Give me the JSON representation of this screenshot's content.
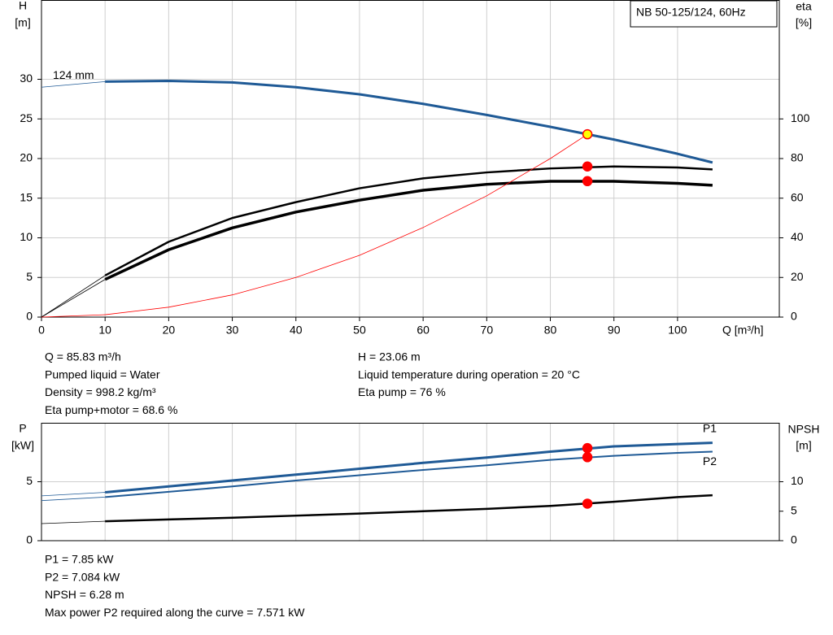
{
  "chart_data": [
    {
      "type": "line",
      "title": "NB 50-125/124, 60Hz",
      "ylabel": "H",
      "yunit": "[m]",
      "y2label": "eta",
      "y2unit": "[%]",
      "xlabel": "Q [m³/h]",
      "xlim": [
        0,
        116
      ],
      "xticks": [
        0,
        10,
        20,
        30,
        40,
        50,
        60,
        70,
        80,
        90,
        100
      ],
      "ylim": [
        0,
        40
      ],
      "yticks": [
        0,
        5,
        10,
        15,
        20,
        25,
        30
      ],
      "y2lim": [
        0,
        160
      ],
      "y2ticks": [
        0,
        20,
        40,
        60,
        80,
        100
      ],
      "grid": true,
      "thick_from": 10,
      "thin_width": 0.8,
      "point_x": 85.83,
      "series": [
        {
          "name": "124 mm",
          "color": "#1f5a96",
          "width": 3,
          "x": [
            0,
            10,
            20,
            30,
            40,
            50,
            60,
            70,
            80,
            90,
            100,
            105.5
          ],
          "values": [
            29,
            29.7,
            29.8,
            29.6,
            29.0,
            28.1,
            26.9,
            25.5,
            24.0,
            22.4,
            20.6,
            19.5
          ],
          "point": 23.06,
          "point_color": "#ffff00"
        },
        {
          "color": "#000000",
          "axis": "y2",
          "width": 2.5,
          "x": [
            0,
            10,
            20,
            30,
            40,
            50,
            60,
            70,
            80,
            90,
            100,
            105.5
          ],
          "values": [
            0,
            21,
            38,
            50,
            58,
            65,
            70,
            73,
            75,
            76,
            75.5,
            74.5
          ],
          "point": 76,
          "point_color": "#ff0000"
        },
        {
          "color": "#000000",
          "axis": "y2",
          "width": 3.5,
          "x": [
            0,
            10,
            20,
            30,
            40,
            50,
            60,
            70,
            80,
            90,
            100,
            105.5
          ],
          "values": [
            0,
            19,
            34,
            45,
            53,
            59,
            64,
            67,
            68.5,
            68.5,
            67.5,
            66.5
          ],
          "point": 68.6,
          "point_color": "#ff0000"
        },
        {
          "color": "#ff0000",
          "width": 0.8,
          "x": [
            0,
            10,
            20,
            30,
            40,
            50,
            60,
            70,
            80,
            85.83
          ],
          "values": [
            0,
            0.3,
            1.25,
            2.8,
            5.0,
            7.8,
            11.3,
            15.3,
            20.0,
            23.06
          ]
        }
      ],
      "info_left": [
        "Q = 85.83 m³/h",
        "Pumped liquid = Water",
        "Density = 998.2 kg/m³",
        "Eta pump+motor = 68.6 %"
      ],
      "info_right": [
        "H = 23.06 m",
        "Liquid temperature during operation = 20 °C",
        "Eta pump = 76 %"
      ]
    },
    {
      "type": "line",
      "ylabel": "P",
      "yunit": "[kW]",
      "y2label": "NPSH",
      "y2unit": "[m]",
      "xlim": [
        0,
        116
      ],
      "ylim": [
        0,
        10
      ],
      "yticks": [
        0,
        5
      ],
      "y2lim": [
        0,
        20
      ],
      "y2ticks": [
        0,
        5,
        10
      ],
      "grid": true,
      "thick_from": 10,
      "thin_width": 0.8,
      "point_x": 85.83,
      "series": [
        {
          "name": "P1",
          "color": "#1f5a96",
          "width": 3,
          "x": [
            0,
            10,
            20,
            30,
            40,
            50,
            60,
            70,
            80,
            90,
            100,
            105.5
          ],
          "values": [
            3.8,
            4.1,
            4.6,
            5.1,
            5.6,
            6.1,
            6.6,
            7.05,
            7.55,
            8.0,
            8.2,
            8.3
          ],
          "point": 7.85,
          "point_color": "#ff0000"
        },
        {
          "name": "P2",
          "color": "#1f5a96",
          "width": 2,
          "x": [
            0,
            10,
            20,
            30,
            40,
            50,
            60,
            70,
            80,
            90,
            100,
            105.5
          ],
          "values": [
            3.4,
            3.7,
            4.15,
            4.6,
            5.1,
            5.55,
            6.0,
            6.4,
            6.85,
            7.2,
            7.45,
            7.55
          ],
          "point": 7.084,
          "point_color": "#ff0000"
        },
        {
          "color": "#000000",
          "axis": "y2",
          "width": 2.5,
          "x": [
            0,
            10,
            20,
            30,
            40,
            50,
            60,
            70,
            80,
            90,
            100,
            105.5
          ],
          "values": [
            2.9,
            3.3,
            3.6,
            3.9,
            4.25,
            4.6,
            5.0,
            5.4,
            5.9,
            6.6,
            7.4,
            7.7
          ],
          "point": 6.28,
          "point_color": "#ff0000"
        }
      ],
      "info": [
        "P1 = 7.85 kW",
        "P2 = 7.084 kW",
        "NPSH = 6.28 m",
        "Max power P2 required along the curve = 7.571 kW"
      ]
    }
  ]
}
